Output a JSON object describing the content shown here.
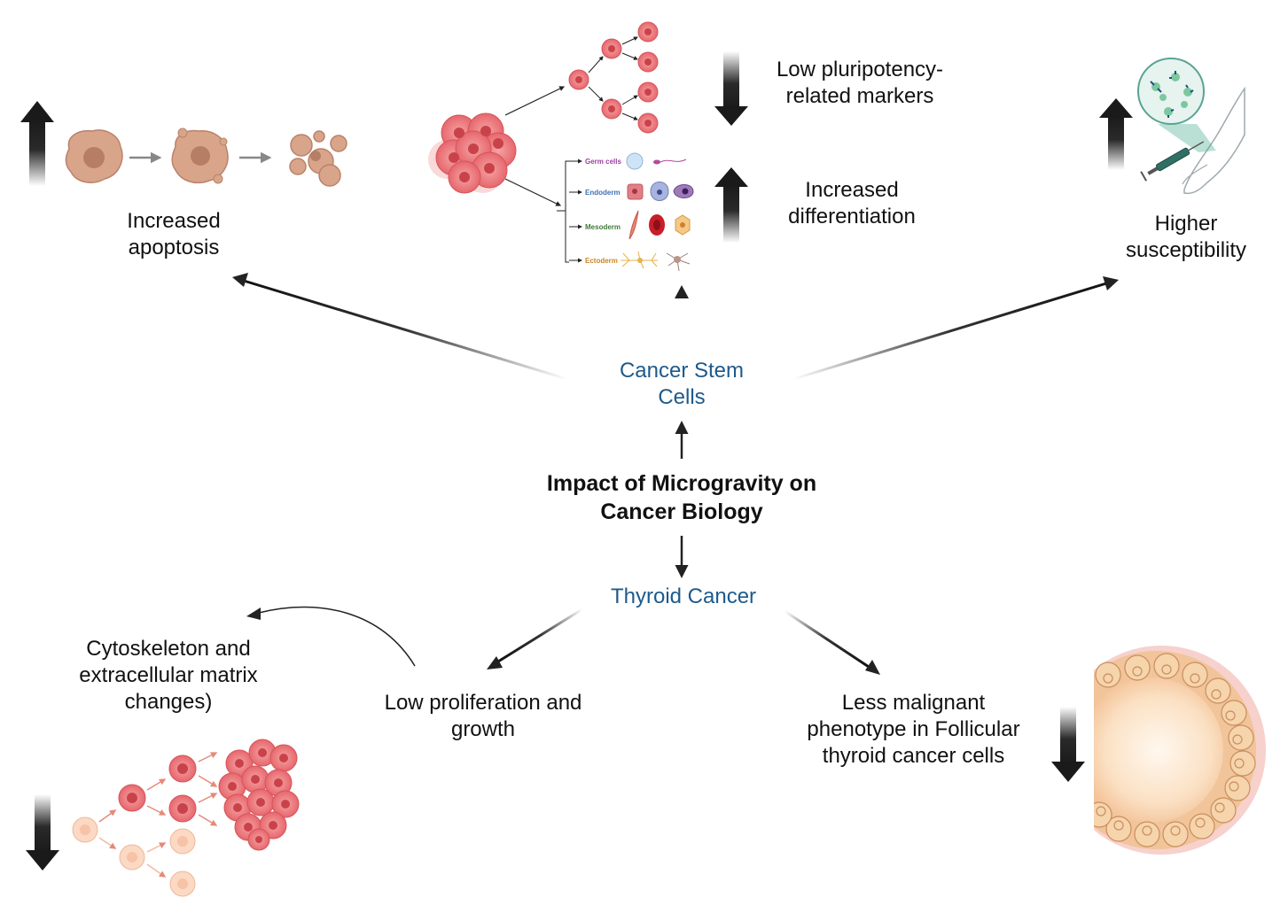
{
  "center": {
    "title_line1": "Impact of Microgravity on",
    "title_line2": "Cancer Biology"
  },
  "nodes": {
    "cancer_stem_cells_line1": "Cancer Stem",
    "cancer_stem_cells_line2": "Cells",
    "thyroid_cancer": "Thyroid Cancer"
  },
  "outcomes": {
    "apoptosis_line1": "Increased",
    "apoptosis_line2": "apoptosis",
    "pluripotency_line1": "Low pluripotency-",
    "pluripotency_line2": "related markers",
    "differentiation_line1": "Increased",
    "differentiation_line2": "differentiation",
    "susceptibility_line1": "Higher",
    "susceptibility_line2": "susceptibility",
    "cytoskeleton_line1": "Cytoskeleton and",
    "cytoskeleton_line2": "extracellular matrix",
    "cytoskeleton_line3": "changes)",
    "proliferation_line1": "Low proliferation and",
    "proliferation_line2": "growth",
    "malignant_line1": "Less malignant",
    "malignant_line2": "phenotype in Follicular",
    "malignant_line3": "thyroid cancer cells"
  },
  "germ_layers": {
    "germ": "Germ cells",
    "endoderm": "Endoderm",
    "mesoderm": "Mesoderm",
    "ectoderm": "Ectoderm"
  },
  "colors": {
    "node_blue": "#1d5a8c",
    "arrow_dark": "#222222",
    "cell_pink": "#e8656b",
    "cell_tan": "#d9a58a",
    "germ_purple": "#9b3fa0",
    "endoderm_blue": "#3f6fb5",
    "mesoderm_green": "#3f7a3a",
    "ectoderm_orange": "#c9852a"
  }
}
